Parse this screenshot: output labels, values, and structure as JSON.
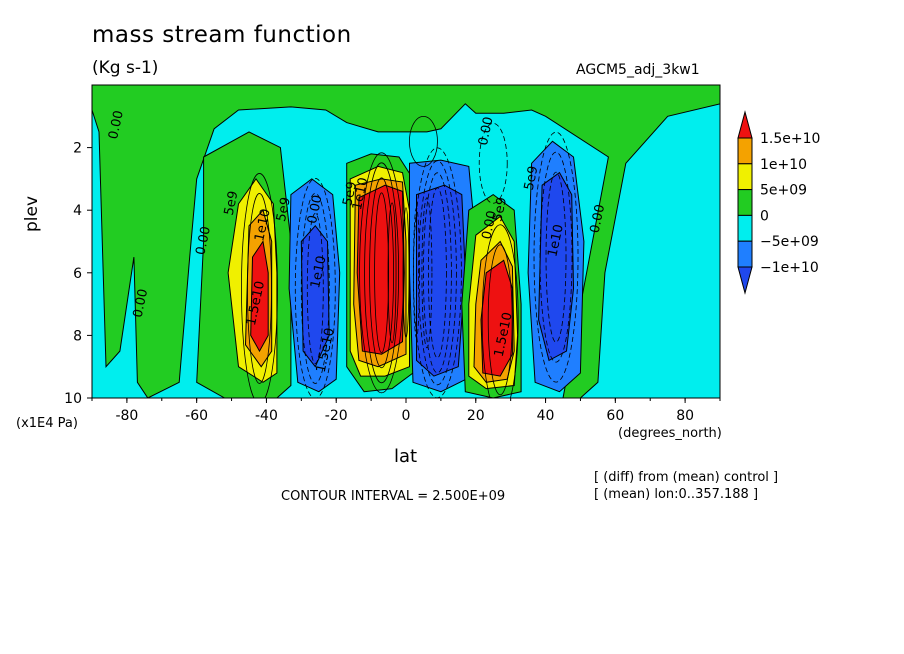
{
  "chart_data": {
    "type": "heatmap",
    "title": "mass stream function",
    "units_label": "(Kg s-1)",
    "dataset_label": "AGCM5_adj_3kw1",
    "xlabel": "lat",
    "xunit": "(degrees_north)",
    "ylabel": "plev",
    "yunit": "(x1E4 Pa)",
    "xlim": [
      -90,
      90
    ],
    "ylim": [
      10,
      0
    ],
    "x_ticks": [
      -80,
      -60,
      -40,
      -20,
      0,
      20,
      40,
      60,
      80
    ],
    "y_ticks": [
      2,
      4,
      6,
      8,
      10
    ],
    "contour_interval_text": "CONTOUR INTERVAL = 2.500E+09",
    "annotations": [
      "[ (diff) from (mean) control ]",
      "[ (mean) lon:0..357.188 ]"
    ],
    "colorbar": {
      "labels": [
        "1.5e+10",
        "1e+10",
        "5e+09",
        "0",
        "−5e+09",
        "−1e+10"
      ],
      "colors": [
        "#ee1111",
        "#f4a200",
        "#f0f000",
        "#22cc22",
        "#00eeee",
        "#1f7fff",
        "#1f48ee"
      ]
    },
    "cells": [
      {
        "lat": -42,
        "plev": 6.5,
        "value": 15000000000.0
      },
      {
        "lat": -25,
        "plev": 6.5,
        "value": -15000000000.0
      },
      {
        "lat": -5,
        "plev": 6.0,
        "value": 25000000000.0
      },
      {
        "lat": 8,
        "plev": 6.0,
        "value": -25000000000.0
      },
      {
        "lat": 27,
        "plev": 7.5,
        "value": 15000000000.0
      },
      {
        "lat": 43,
        "plev": 5.0,
        "value": -15000000000.0
      }
    ],
    "contour_labels": [
      {
        "text": "0.00",
        "lat": -82,
        "plev": 1.3
      },
      {
        "text": "0.00",
        "lat": -57,
        "plev": 5.0
      },
      {
        "text": "0.00",
        "lat": -75,
        "plev": 7.0
      },
      {
        "text": "5e9",
        "lat": -49,
        "plev": 3.8
      },
      {
        "text": "1.5e10",
        "lat": -42,
        "plev": 7.0
      },
      {
        "text": "1e10",
        "lat": -40,
        "plev": 4.5
      },
      {
        "text": "5e9",
        "lat": -34,
        "plev": 4.0
      },
      {
        "text": "0.00",
        "lat": -25,
        "plev": 4.0
      },
      {
        "text": "1e10",
        "lat": -24,
        "plev": 6.0
      },
      {
        "text": "1.5e10",
        "lat": -22,
        "plev": 8.5
      },
      {
        "text": "5e9",
        "lat": -15,
        "plev": 3.5
      },
      {
        "text": "1e10",
        "lat": -12,
        "plev": 3.5
      },
      {
        "text": "0.00",
        "lat": 24,
        "plev": 1.5
      },
      {
        "text": "0.00",
        "lat": 25,
        "plev": 4.5
      },
      {
        "text": "5e9",
        "lat": 28,
        "plev": 4.0
      },
      {
        "text": "1.5e10",
        "lat": 29,
        "plev": 8.0
      },
      {
        "text": "5e9",
        "lat": 37,
        "plev": 3.0
      },
      {
        "text": "1e10",
        "lat": 44,
        "plev": 5.0
      },
      {
        "text": "0.00",
        "lat": 56,
        "plev": 4.3
      }
    ]
  }
}
